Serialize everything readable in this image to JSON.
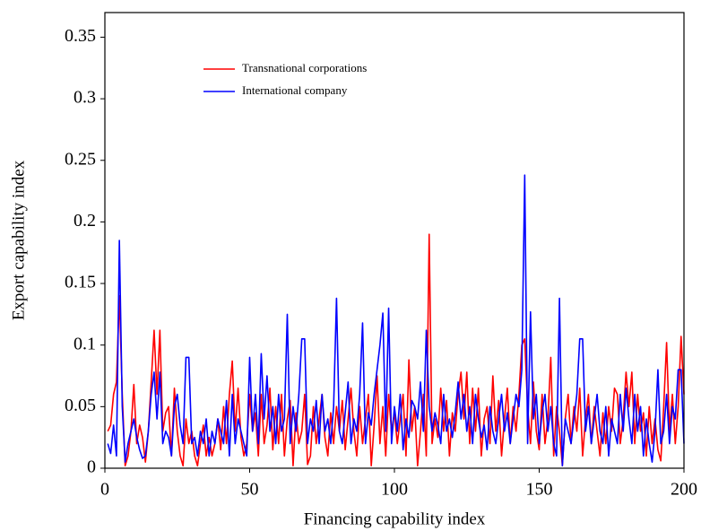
{
  "chart_data": {
    "type": "line",
    "xlabel": "Financing capability index",
    "ylabel": "Export capability index",
    "xlim": [
      0,
      200
    ],
    "ylim": [
      0,
      0.37
    ],
    "xticks": [
      0,
      50,
      100,
      150,
      200
    ],
    "yticks": [
      0,
      0.05,
      0.1,
      0.15,
      0.2,
      0.25,
      0.3,
      0.35
    ],
    "legend": "upper left",
    "x": [
      1,
      2,
      3,
      4,
      5,
      6,
      7,
      8,
      9,
      10,
      11,
      12,
      13,
      14,
      15,
      16,
      17,
      18,
      19,
      20,
      21,
      22,
      23,
      24,
      25,
      26,
      27,
      28,
      29,
      30,
      31,
      32,
      33,
      34,
      35,
      36,
      37,
      38,
      39,
      40,
      41,
      42,
      43,
      44,
      45,
      46,
      47,
      48,
      49,
      50,
      51,
      52,
      53,
      54,
      55,
      56,
      57,
      58,
      59,
      60,
      61,
      62,
      63,
      64,
      65,
      66,
      67,
      68,
      69,
      70,
      71,
      72,
      73,
      74,
      75,
      76,
      77,
      78,
      79,
      80,
      81,
      82,
      83,
      84,
      85,
      86,
      87,
      88,
      89,
      90,
      91,
      92,
      93,
      94,
      95,
      96,
      97,
      98,
      99,
      100,
      101,
      102,
      103,
      104,
      105,
      106,
      107,
      108,
      109,
      110,
      111,
      112,
      113,
      114,
      115,
      116,
      117,
      118,
      119,
      120,
      121,
      122,
      123,
      124,
      125,
      126,
      127,
      128,
      129,
      130,
      131,
      132,
      133,
      134,
      135,
      136,
      137,
      138,
      139,
      140,
      141,
      142,
      143,
      144,
      145,
      146,
      147,
      148,
      149,
      150,
      151,
      152,
      153,
      154,
      155,
      156,
      157,
      158,
      159,
      160,
      161,
      162,
      163,
      164,
      165,
      166,
      167,
      168,
      169,
      170,
      171,
      172,
      173,
      174,
      175,
      176,
      177,
      178,
      179,
      180,
      181,
      182,
      183,
      184,
      185,
      186,
      187,
      188,
      189,
      190,
      191,
      192,
      193,
      194,
      195,
      196,
      197,
      198,
      199,
      200
    ],
    "series": [
      {
        "name": "Transnational corporations",
        "color": "#ff0000",
        "values": [
          0.03,
          0.035,
          0.06,
          0.07,
          0.14,
          0.06,
          0.002,
          0.01,
          0.03,
          0.068,
          0.02,
          0.035,
          0.025,
          0.005,
          0.03,
          0.07,
          0.112,
          0.06,
          0.112,
          0.03,
          0.045,
          0.05,
          0.01,
          0.065,
          0.03,
          0.01,
          0.002,
          0.04,
          0.02,
          0.03,
          0.01,
          0.002,
          0.02,
          0.035,
          0.01,
          0.025,
          0.01,
          0.02,
          0.04,
          0.015,
          0.05,
          0.02,
          0.06,
          0.087,
          0.03,
          0.065,
          0.025,
          0.01,
          0.02,
          0.06,
          0.03,
          0.045,
          0.01,
          0.06,
          0.02,
          0.035,
          0.065,
          0.015,
          0.05,
          0.02,
          0.06,
          0.01,
          0.04,
          0.055,
          0.002,
          0.045,
          0.02,
          0.03,
          0.06,
          0.003,
          0.01,
          0.05,
          0.02,
          0.04,
          0.06,
          0.025,
          0.01,
          0.045,
          0.02,
          0.05,
          0.03,
          0.055,
          0.015,
          0.04,
          0.065,
          0.03,
          0.01,
          0.05,
          0.02,
          0.04,
          0.06,
          0.002,
          0.035,
          0.075,
          0.02,
          0.05,
          0.01,
          0.06,
          0.03,
          0.045,
          0.02,
          0.04,
          0.06,
          0.01,
          0.088,
          0.03,
          0.05,
          0.002,
          0.03,
          0.06,
          0.01,
          0.19,
          0.02,
          0.04,
          0.025,
          0.065,
          0.03,
          0.055,
          0.01,
          0.045,
          0.03,
          0.06,
          0.078,
          0.04,
          0.078,
          0.02,
          0.065,
          0.03,
          0.065,
          0.01,
          0.04,
          0.05,
          0.02,
          0.075,
          0.03,
          0.055,
          0.01,
          0.04,
          0.065,
          0.02,
          0.05,
          0.03,
          0.06,
          0.1,
          0.105,
          0.05,
          0.02,
          0.07,
          0.03,
          0.015,
          0.06,
          0.02,
          0.04,
          0.09,
          0.01,
          0.05,
          0.03,
          0.002,
          0.04,
          0.06,
          0.02,
          0.05,
          0.03,
          0.065,
          0.01,
          0.04,
          0.06,
          0.02,
          0.05,
          0.03,
          0.01,
          0.045,
          0.02,
          0.05,
          0.03,
          0.065,
          0.06,
          0.02,
          0.04,
          0.078,
          0.05,
          0.078,
          0.02,
          0.06,
          0.03,
          0.045,
          0.01,
          0.05,
          0.02,
          0.04,
          0.015,
          0.006,
          0.05,
          0.102,
          0.03,
          0.06,
          0.02,
          0.05,
          0.107,
          0.06
        ]
      },
      {
        "name": "International company",
        "color": "#0000ff",
        "values": [
          0.02,
          0.012,
          0.035,
          0.01,
          0.185,
          0.05,
          0.005,
          0.02,
          0.03,
          0.04,
          0.025,
          0.015,
          0.008,
          0.01,
          0.03,
          0.06,
          0.078,
          0.04,
          0.078,
          0.02,
          0.03,
          0.025,
          0.01,
          0.05,
          0.06,
          0.035,
          0.02,
          0.09,
          0.09,
          0.02,
          0.025,
          0.01,
          0.03,
          0.02,
          0.04,
          0.01,
          0.03,
          0.02,
          0.04,
          0.03,
          0.02,
          0.055,
          0.01,
          0.06,
          0.02,
          0.04,
          0.03,
          0.02,
          0.01,
          0.09,
          0.03,
          0.06,
          0.02,
          0.093,
          0.04,
          0.075,
          0.03,
          0.05,
          0.02,
          0.06,
          0.03,
          0.04,
          0.125,
          0.02,
          0.05,
          0.03,
          0.06,
          0.105,
          0.105,
          0.02,
          0.04,
          0.03,
          0.055,
          0.02,
          0.06,
          0.03,
          0.04,
          0.02,
          0.05,
          0.138,
          0.03,
          0.02,
          0.045,
          0.07,
          0.02,
          0.04,
          0.03,
          0.06,
          0.118,
          0.02,
          0.045,
          0.035,
          0.06,
          0.08,
          0.1,
          0.126,
          0.03,
          0.13,
          0.02,
          0.05,
          0.03,
          0.06,
          0.015,
          0.04,
          0.025,
          0.055,
          0.05,
          0.04,
          0.07,
          0.03,
          0.112,
          0.05,
          0.03,
          0.045,
          0.035,
          0.02,
          0.06,
          0.03,
          0.04,
          0.025,
          0.045,
          0.07,
          0.04,
          0.06,
          0.03,
          0.05,
          0.02,
          0.06,
          0.04,
          0.025,
          0.035,
          0.015,
          0.05,
          0.03,
          0.02,
          0.04,
          0.06,
          0.03,
          0.045,
          0.02,
          0.04,
          0.06,
          0.05,
          0.08,
          0.238,
          0.02,
          0.127,
          0.04,
          0.06,
          0.02,
          0.045,
          0.06,
          0.03,
          0.05,
          0.02,
          0.01,
          0.138,
          0.002,
          0.04,
          0.03,
          0.02,
          0.04,
          0.06,
          0.105,
          0.105,
          0.03,
          0.05,
          0.02,
          0.04,
          0.06,
          0.03,
          0.02,
          0.05,
          0.01,
          0.04,
          0.03,
          0.02,
          0.06,
          0.03,
          0.065,
          0.04,
          0.02,
          0.06,
          0.03,
          0.05,
          0.01,
          0.04,
          0.02,
          0.005,
          0.03,
          0.08,
          0.02,
          0.03,
          0.06,
          0.02,
          0.05,
          0.04,
          0.08,
          0.08,
          0.02
        ]
      }
    ]
  }
}
